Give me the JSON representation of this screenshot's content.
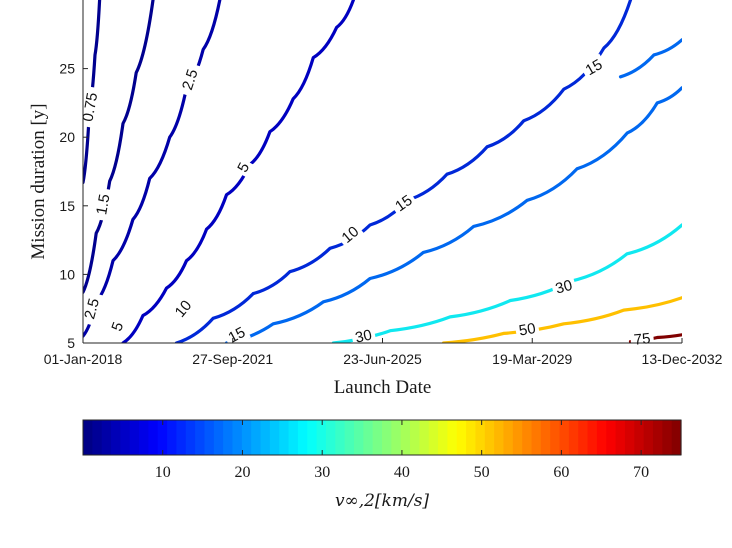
{
  "chart_data": {
    "type": "contour",
    "xlabel": "Launch Date",
    "ylabel": "Mission duration [y]",
    "x_ticks": [
      "01-Jan-2018",
      "27-Sep-2021",
      "23-Jun-2025",
      "19-Mar-2029",
      "13-Dec-2032"
    ],
    "x_range": [
      "01-Jan-2018",
      "13-Dec-2032"
    ],
    "y_ticks": [
      5,
      10,
      15,
      20,
      25
    ],
    "y_range": [
      5,
      30
    ],
    "colormap": "jet",
    "colorbar": {
      "range": [
        0,
        75
      ],
      "ticks": [
        10,
        20,
        30,
        40,
        50,
        60,
        70
      ],
      "label": "v_{∞,2}[km/s]",
      "label_display": "v∞,2[km/s]"
    },
    "contours": [
      {
        "level": "0.75",
        "color": "#00008f",
        "points": [
          [
            "2018-01-01",
            16.7
          ],
          [
            "2018-03-01",
            22
          ],
          [
            "2018-04-20",
            26
          ],
          [
            "2018-06-01",
            30
          ]
        ]
      },
      {
        "level": "1.5",
        "color": "#00008f",
        "points": [
          [
            "2018-01-01",
            8.7
          ],
          [
            "2018-05-01",
            13
          ],
          [
            "2018-09-01",
            16.8
          ],
          [
            "2019-01-01",
            21
          ],
          [
            "2019-05-01",
            24.7
          ],
          [
            "2019-10-01",
            30
          ]
        ]
      },
      {
        "level": "2.5",
        "color": "#0000a8",
        "points": [
          [
            "2018-01-01",
            5.5
          ],
          [
            "2018-05-01",
            8
          ],
          [
            "2018-10-01",
            11
          ],
          [
            "2019-04-01",
            14
          ],
          [
            "2019-09-01",
            17
          ],
          [
            "2020-03-01",
            20
          ],
          [
            "2020-08-01",
            23.6
          ],
          [
            "2021-01-01",
            26.4
          ],
          [
            "2021-06-01",
            30
          ]
        ]
      },
      {
        "level": "5",
        "color": "#0000c0",
        "points": [
          [
            "2019-01-01",
            5
          ],
          [
            "2019-07-01",
            7
          ],
          [
            "2020-02-01",
            9
          ],
          [
            "2020-08-01",
            11
          ],
          [
            "2021-02-01",
            13.3
          ],
          [
            "2021-08-01",
            15.8
          ],
          [
            "2022-03-01",
            18
          ],
          [
            "2022-09-01",
            20.4
          ],
          [
            "2023-04-01",
            22.8
          ],
          [
            "2023-10-01",
            25.8
          ],
          [
            "2024-05-01",
            28
          ],
          [
            "2024-10-01",
            30
          ]
        ]
      },
      {
        "level": "10",
        "color": "#0028d8",
        "points": [
          [
            "2020-05-01",
            5
          ],
          [
            "2021-04-01",
            6.8
          ],
          [
            "2022-04-01",
            8.6
          ],
          [
            "2023-03-01",
            10.2
          ],
          [
            "2024-03-01",
            11.9
          ],
          [
            "2025-03-01",
            13.6
          ],
          [
            "2026-02-01",
            15.4
          ],
          [
            "2027-02-01",
            17.3
          ],
          [
            "2028-02-01",
            19.3
          ],
          [
            "2029-01-01",
            21.2
          ],
          [
            "2030-01-01",
            23.5
          ],
          [
            "2031-01-01",
            26.5
          ],
          [
            "2031-09-01",
            30
          ]
        ]
      },
      {
        "level": "15",
        "color": "#0068f0",
        "points": [
          [
            "2021-08-01",
            5
          ],
          [
            "2022-10-01",
            6.4
          ],
          [
            "2024-01-01",
            8
          ],
          [
            "2025-03-01",
            9.7
          ],
          [
            "2026-07-01",
            11.6
          ],
          [
            "2027-10-01",
            13.5
          ],
          [
            "2029-02-01",
            15.4
          ],
          [
            "2030-05-01",
            17.7
          ],
          [
            "2031-08-01",
            20.3
          ],
          [
            "2032-05-01",
            22.5
          ],
          [
            "2032-12-13",
            23.6
          ]
        ]
      },
      {
        "level": "15",
        "color": "#0068f0",
        "points": [
          [
            "2031-06-01",
            24.4
          ],
          [
            "2032-04-01",
            26
          ],
          [
            "2032-12-13",
            27.1
          ]
        ]
      },
      {
        "level": "30",
        "color": "#10e8f0",
        "points": [
          [
            "2024-04-01",
            5
          ],
          [
            "2025-09-01",
            5.9
          ],
          [
            "2027-03-01",
            6.9
          ],
          [
            "2028-09-01",
            8.1
          ],
          [
            "2030-03-01",
            9.5
          ],
          [
            "2031-08-01",
            11.5
          ],
          [
            "2032-12-13",
            13.6
          ]
        ]
      },
      {
        "level": "50",
        "color": "#ffc000",
        "points": [
          [
            "2027-01-01",
            5
          ],
          [
            "2028-07-01",
            5.7
          ],
          [
            "2030-01-01",
            6.4
          ],
          [
            "2031-07-01",
            7.4
          ],
          [
            "2032-12-13",
            8.3
          ]
        ]
      },
      {
        "level": "75",
        "color": "#800000",
        "points": [
          [
            "2031-09-01",
            5.1
          ],
          [
            "2032-05-01",
            5.4
          ],
          [
            "2032-12-13",
            5.6
          ]
        ]
      }
    ],
    "contour_labels": [
      {
        "text": "0.75",
        "x": "2018-03-05",
        "y": 22.2,
        "angle": -80
      },
      {
        "text": "1.5",
        "x": "2018-07-01",
        "y": 15.1,
        "angle": -80
      },
      {
        "text": "2.5",
        "x": "2018-03-20",
        "y": 7.5,
        "angle": -75
      },
      {
        "text": "2.5",
        "x": "2020-09-01",
        "y": 24.2,
        "angle": -72
      },
      {
        "text": "5",
        "x": "2018-11-10",
        "y": 6.2,
        "angle": -70
      },
      {
        "text": "5",
        "x": "2022-01-01",
        "y": 17.8,
        "angle": -62
      },
      {
        "text": "10",
        "x": "2020-07-01",
        "y": 7.5,
        "angle": -50
      },
      {
        "text": "10",
        "x": "2024-09-01",
        "y": 12.9,
        "angle": -40
      },
      {
        "text": "15",
        "x": "2021-11-01",
        "y": 5.6,
        "angle": -28
      },
      {
        "text": "15",
        "x": "2026-01-01",
        "y": 15.2,
        "angle": -35
      },
      {
        "text": "15",
        "x": "2030-10-01",
        "y": 25.1,
        "angle": -30
      },
      {
        "text": "30",
        "x": "2025-01-01",
        "y": 5.5,
        "angle": -12
      },
      {
        "text": "30",
        "x": "2030-01-01",
        "y": 9.1,
        "angle": -15
      },
      {
        "text": "50",
        "x": "2029-02-01",
        "y": 6.0,
        "angle": -10
      },
      {
        "text": "75",
        "x": "2031-12-15",
        "y": 5.3,
        "angle": -6
      }
    ]
  }
}
